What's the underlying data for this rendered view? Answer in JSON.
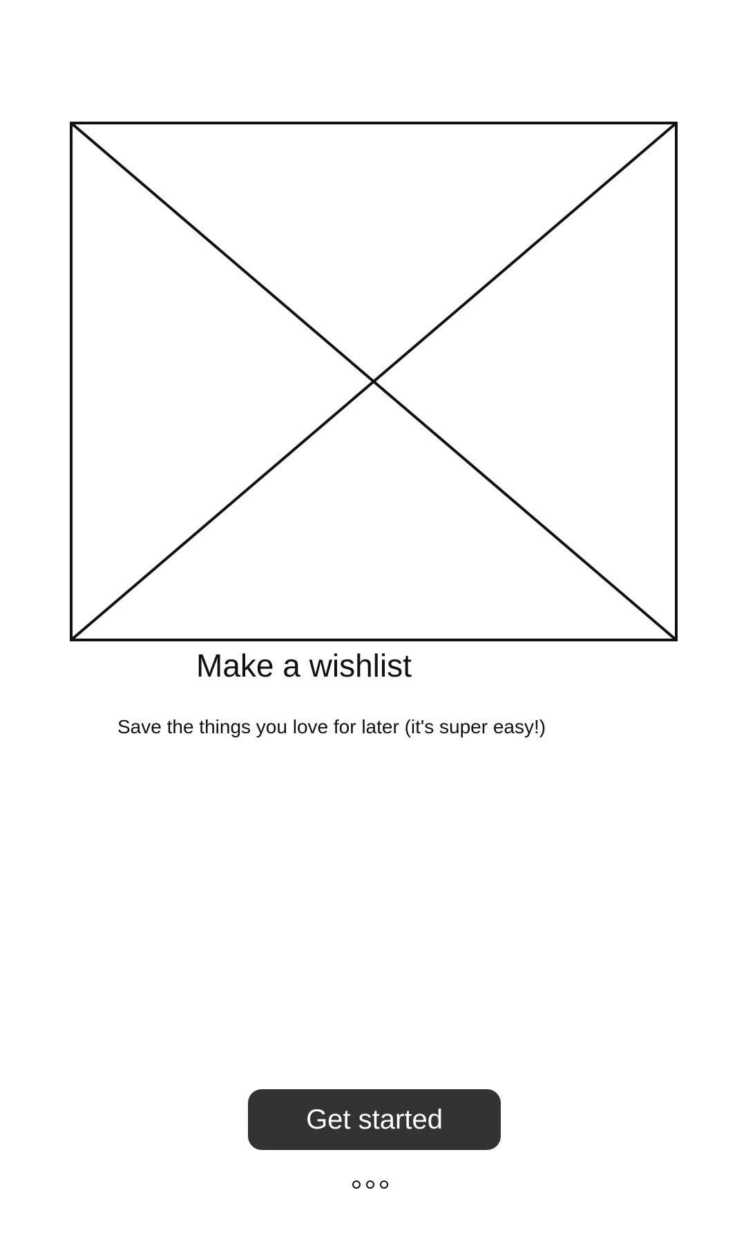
{
  "onboarding": {
    "image_placeholder_icon": "image-placeholder-icon",
    "title": "Make a wishlist",
    "subtitle": "Save the things you love for later (it's super easy!)",
    "cta_label": "Get started",
    "pager": {
      "page_count": 3
    }
  }
}
